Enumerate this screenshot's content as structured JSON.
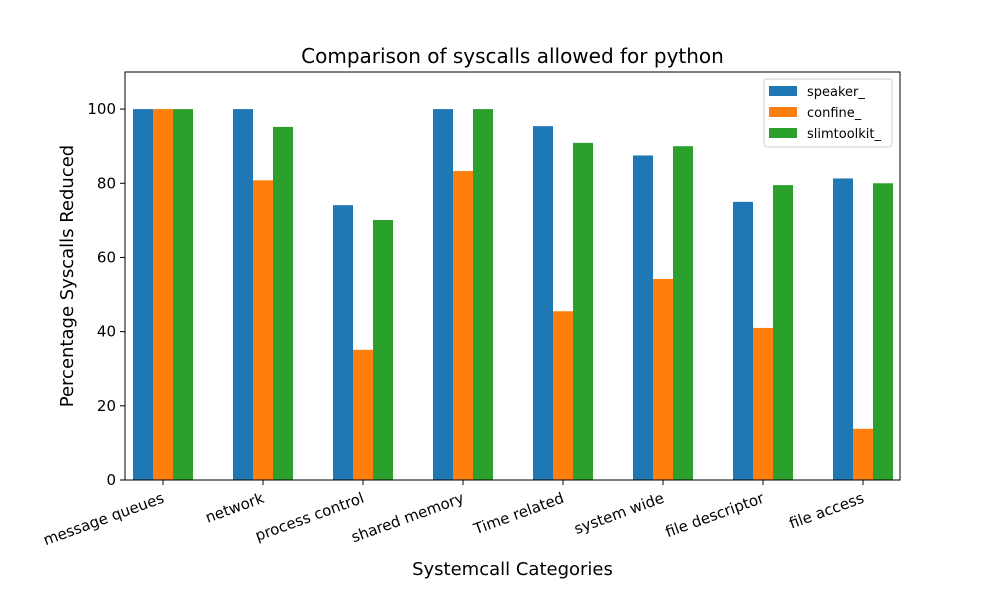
{
  "chart_data": {
    "type": "bar",
    "title": "Comparison of syscalls allowed for python",
    "xlabel": "Systemcall Categories",
    "ylabel": "Percentage Syscalls Reduced",
    "categories": [
      "message queues",
      "network",
      "process control",
      "shared memory",
      "Time related",
      "system wide",
      "file descriptor",
      "file access"
    ],
    "series": [
      {
        "name": "speaker_",
        "color": "#1f77b4",
        "values": [
          100,
          100,
          74.1,
          100,
          95.4,
          87.5,
          75,
          81.3
        ]
      },
      {
        "name": "confine_",
        "color": "#ff7f0e",
        "values": [
          100,
          80.8,
          35.1,
          83.3,
          45.5,
          54.2,
          41,
          13.8
        ]
      },
      {
        "name": "slimtoolkit_",
        "color": "#2ca02c",
        "values": [
          100,
          95.2,
          70.1,
          100,
          90.9,
          90,
          79.5,
          80
        ]
      }
    ],
    "ylim": [
      0,
      110
    ],
    "yticks": [
      0,
      20,
      40,
      60,
      80,
      100
    ],
    "grid": false,
    "legend_position": "top-right"
  }
}
